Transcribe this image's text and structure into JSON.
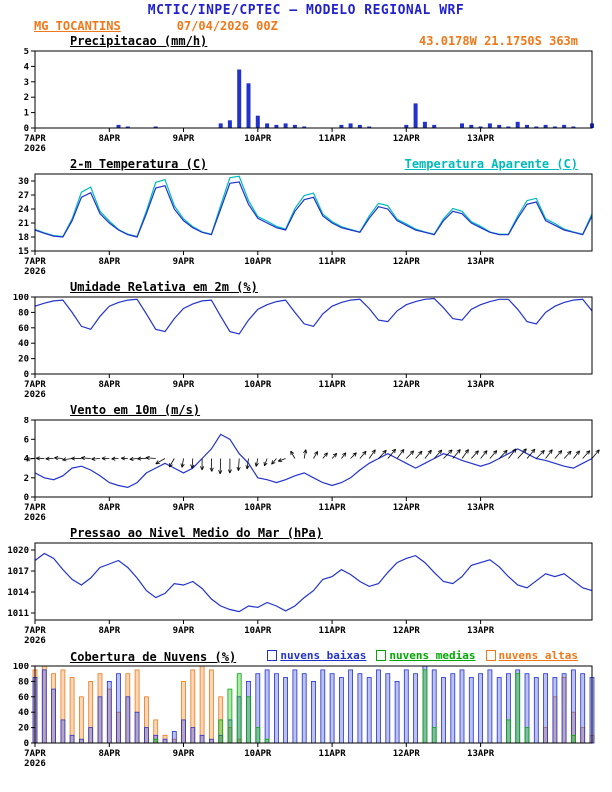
{
  "header": {
    "title": "MCTIC/INPE/CPTEC — MODELO REGIONAL WRF",
    "station": "MG TOCANTINS",
    "run": "07/04/2026 00Z"
  },
  "colors": {
    "blue": "#2233cc",
    "cyan": "#00bbbb",
    "green": "#00aa00",
    "orange": "#f07818",
    "black": "#000000",
    "header_blue": "#2222cc"
  },
  "axis": {
    "x_ticks": [
      "7APR",
      "8APR",
      "9APR",
      "10APR",
      "11APR",
      "12APR",
      "13APR"
    ],
    "year": "2026",
    "days_total": 7.5,
    "tick_days": [
      0,
      1,
      2,
      3,
      4,
      5,
      6
    ],
    "step_hours": 3
  },
  "chart_data": [
    {
      "id": "precipitacao",
      "type": "bar",
      "title": "Precipitacao (mm/h)",
      "right_label": "43.0178W 21.1750S 363m",
      "ylabel": "mm/h",
      "ylim": [
        0,
        5
      ],
      "yticks": [
        0,
        1,
        2,
        3,
        4,
        5
      ],
      "layers": [
        {
          "kind": "bars",
          "name": "precipitacao",
          "color": "blue",
          "values": [
            0,
            0,
            0,
            0,
            0,
            0,
            0,
            0,
            0,
            0.2,
            0.1,
            0,
            0,
            0.1,
            0,
            0,
            0,
            0,
            0,
            0,
            0.3,
            0.5,
            3.8,
            2.9,
            0.8,
            0.3,
            0.2,
            0.3,
            0.2,
            0.1,
            0,
            0,
            0,
            0.2,
            0.3,
            0.2,
            0.1,
            0,
            0,
            0,
            0.2,
            1.6,
            0.4,
            0.2,
            0,
            0,
            0.3,
            0.2,
            0.1,
            0.3,
            0.2,
            0.1,
            0.4,
            0.2,
            0.1,
            0.2,
            0.1,
            0.2,
            0.1,
            0,
            0.3
          ]
        }
      ]
    },
    {
      "id": "temperatura",
      "type": "line",
      "title": "2-m Temperatura (C)",
      "right_label": "Temperatura Aparente (C)",
      "ylabel": "C",
      "ylim": [
        15,
        31.5
      ],
      "yticks": [
        15,
        18,
        21,
        24,
        27,
        30
      ],
      "layers": [
        {
          "kind": "line",
          "name": "Temperatura Aparente (C)",
          "color": "cyan",
          "values": [
            19.6,
            18.9,
            18.3,
            18.1,
            21.9,
            27.6,
            28.7,
            23.5,
            21.4,
            19.6,
            18.6,
            18.1,
            23.6,
            29.7,
            30.3,
            24.7,
            21.9,
            20.2,
            19.1,
            18.6,
            24.8,
            30.7,
            31.0,
            25.8,
            22.4,
            21.4,
            20.3,
            19.7,
            24.1,
            26.9,
            27.4,
            22.9,
            21.3,
            20.2,
            19.6,
            19.1,
            22.5,
            25.2,
            24.7,
            21.8,
            20.8,
            19.7,
            19.1,
            18.6,
            21.9,
            24.1,
            23.5,
            21.3,
            20.3,
            19.1,
            18.6,
            18.6,
            22.5,
            25.8,
            26.3,
            21.9,
            20.9,
            19.7,
            19.1,
            18.6,
            23.0
          ]
        },
        {
          "kind": "line",
          "name": "2-m Temperatura (C)",
          "color": "blue",
          "values": [
            19.5,
            18.8,
            18.2,
            18.0,
            21.5,
            26.5,
            27.5,
            23.0,
            21.0,
            19.5,
            18.5,
            18.0,
            23.0,
            28.5,
            29.0,
            24.0,
            21.5,
            20.0,
            19.0,
            18.5,
            24.0,
            29.5,
            29.8,
            25.0,
            22.0,
            21.0,
            20.0,
            19.5,
            23.5,
            26.0,
            26.5,
            22.5,
            21.0,
            20.0,
            19.5,
            19.0,
            22.0,
            24.5,
            24.0,
            21.5,
            20.5,
            19.5,
            19.0,
            18.5,
            21.5,
            23.5,
            23.0,
            21.0,
            20.0,
            19.0,
            18.5,
            18.5,
            22.0,
            25.0,
            25.5,
            21.5,
            20.5,
            19.5,
            19.0,
            18.5,
            22.5
          ]
        }
      ]
    },
    {
      "id": "umidade",
      "type": "line",
      "title": "Umidade Relativa em 2m (%)",
      "ylabel": "%",
      "ylim": [
        0,
        100
      ],
      "yticks": [
        0,
        20,
        40,
        60,
        80,
        100
      ],
      "layers": [
        {
          "kind": "line",
          "name": "umidade relativa",
          "color": "blue",
          "values": [
            88,
            92,
            95,
            96,
            80,
            62,
            58,
            75,
            88,
            93,
            96,
            97,
            78,
            58,
            55,
            72,
            85,
            91,
            95,
            96,
            75,
            55,
            52,
            70,
            84,
            90,
            94,
            96,
            80,
            65,
            62,
            78,
            88,
            93,
            96,
            97,
            85,
            70,
            68,
            82,
            90,
            94,
            97,
            98,
            86,
            72,
            70,
            84,
            90,
            94,
            97,
            97,
            84,
            68,
            65,
            80,
            88,
            93,
            96,
            97,
            82
          ]
        }
      ]
    },
    {
      "id": "vento",
      "type": "line",
      "title": "Vento em 10m (m/s)",
      "ylabel": "m/s",
      "ylim": [
        0,
        8
      ],
      "yticks": [
        0,
        2,
        4,
        6,
        8
      ],
      "layers": [
        {
          "kind": "line",
          "name": "velocidade do vento",
          "color": "blue",
          "values": [
            2.5,
            2.0,
            1.8,
            2.2,
            3.0,
            3.2,
            2.8,
            2.2,
            1.5,
            1.2,
            1.0,
            1.5,
            2.5,
            3.0,
            3.5,
            3.0,
            2.5,
            3.0,
            4.0,
            5.0,
            6.5,
            6.0,
            4.5,
            3.5,
            2.0,
            1.8,
            1.5,
            1.8,
            2.2,
            2.5,
            2.0,
            1.5,
            1.2,
            1.5,
            2.0,
            2.8,
            3.5,
            4.0,
            4.5,
            4.0,
            3.5,
            3.0,
            3.5,
            4.0,
            4.5,
            4.2,
            3.8,
            3.5,
            3.2,
            3.5,
            4.0,
            4.5,
            5.0,
            4.5,
            4.0,
            3.8,
            3.5,
            3.2,
            3.0,
            3.5,
            4.0
          ]
        },
        {
          "kind": "barbs",
          "name": "direcao do vento",
          "color": "black",
          "anchor": 4,
          "speed_from": 0,
          "dir": [
            185,
            178,
            182,
            175,
            188,
            180,
            176,
            184,
            179,
            183,
            177,
            186,
            181,
            175,
            210,
            240,
            260,
            265,
            270,
            272,
            268,
            270,
            266,
            262,
            258,
            250,
            230,
            200,
            120,
            80,
            60,
            50,
            48,
            52,
            45,
            50,
            55,
            47,
            50,
            53,
            46,
            49,
            52,
            48,
            45,
            50,
            54,
            47,
            51,
            49,
            46,
            52,
            48,
            50,
            45,
            53,
            49,
            47,
            51,
            48,
            50
          ]
        }
      ]
    },
    {
      "id": "pressao",
      "type": "line",
      "title": "Pressao ao Nivel Medio do Mar (hPa)",
      "ylabel": "hPa",
      "ylim": [
        1010,
        1021
      ],
      "yticks": [
        1011,
        1014,
        1017,
        1020
      ],
      "layers": [
        {
          "kind": "line",
          "name": "pressao",
          "color": "blue",
          "values": [
            1018.5,
            1019.5,
            1018.8,
            1017.2,
            1015.8,
            1015.0,
            1016.0,
            1017.5,
            1018.0,
            1018.5,
            1017.5,
            1016.0,
            1014.2,
            1013.2,
            1013.8,
            1015.2,
            1015.0,
            1015.5,
            1014.5,
            1013.0,
            1012.0,
            1011.5,
            1011.2,
            1012.0,
            1011.8,
            1012.5,
            1012.0,
            1011.3,
            1012.0,
            1013.2,
            1014.2,
            1015.8,
            1016.2,
            1017.2,
            1016.5,
            1015.5,
            1014.8,
            1015.2,
            1016.8,
            1018.2,
            1018.8,
            1019.2,
            1018.2,
            1016.8,
            1015.5,
            1015.2,
            1016.2,
            1017.8,
            1018.2,
            1018.6,
            1017.6,
            1016.2,
            1015.0,
            1014.6,
            1015.6,
            1016.6,
            1016.2,
            1016.6,
            1015.6,
            1014.6,
            1014.2
          ]
        }
      ]
    },
    {
      "id": "nuvens",
      "type": "bar",
      "title": "Cobertura de Nuvens (%)",
      "ylabel": "%",
      "ylim": [
        0,
        100
      ],
      "yticks": [
        0,
        20,
        40,
        60,
        80,
        100
      ],
      "legend": [
        {
          "label": "nuvens baixas",
          "color": "blue"
        },
        {
          "label": "nuvens medias",
          "color": "green"
        },
        {
          "label": "nuvens altas",
          "color": "orange"
        }
      ],
      "layers": [
        {
          "kind": "hollow_bars",
          "name": "nuvens altas",
          "color": "orange",
          "values": [
            95,
            100,
            90,
            95,
            85,
            60,
            80,
            90,
            70,
            40,
            90,
            95,
            60,
            30,
            10,
            5,
            80,
            95,
            100,
            95,
            60,
            20,
            5,
            0,
            0,
            0,
            0,
            0,
            0,
            0,
            0,
            0,
            0,
            0,
            0,
            0,
            0,
            0,
            0,
            0,
            0,
            0,
            0,
            0,
            0,
            0,
            0,
            0,
            0,
            0,
            0,
            0,
            0,
            0,
            0,
            20,
            60,
            85,
            40,
            20,
            10
          ]
        },
        {
          "kind": "hollow_bars",
          "name": "nuvens baixas",
          "color": "blue",
          "values": [
            85,
            95,
            70,
            30,
            10,
            5,
            20,
            60,
            80,
            90,
            60,
            40,
            20,
            10,
            5,
            15,
            30,
            20,
            10,
            5,
            10,
            30,
            60,
            80,
            90,
            95,
            90,
            85,
            95,
            90,
            80,
            95,
            90,
            85,
            95,
            90,
            85,
            95,
            90,
            80,
            95,
            90,
            100,
            95,
            85,
            90,
            95,
            85,
            90,
            95,
            85,
            90,
            95,
            90,
            85,
            90,
            85,
            90,
            95,
            90,
            85
          ]
        },
        {
          "kind": "hollow_bars",
          "name": "nuvens medias",
          "color": "green",
          "values": [
            0,
            0,
            0,
            0,
            0,
            0,
            0,
            0,
            0,
            0,
            0,
            0,
            0,
            5,
            0,
            0,
            0,
            0,
            0,
            0,
            30,
            70,
            90,
            60,
            20,
            5,
            0,
            0,
            0,
            0,
            0,
            0,
            0,
            0,
            0,
            0,
            0,
            0,
            0,
            0,
            0,
            0,
            95,
            20,
            0,
            0,
            0,
            0,
            0,
            0,
            0,
            30,
            90,
            20,
            0,
            0,
            0,
            0,
            10,
            0,
            0
          ]
        }
      ]
    }
  ]
}
